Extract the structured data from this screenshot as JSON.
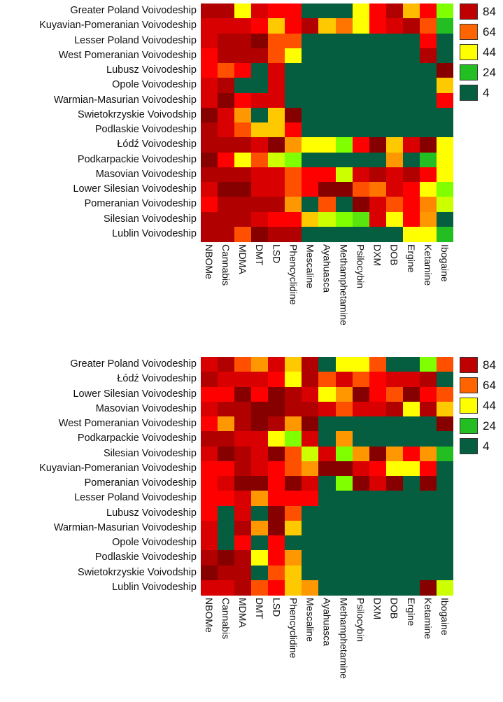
{
  "chart_data": [
    {
      "type": "heatmap",
      "title": "",
      "columns": [
        "NBOMe",
        "Cannabis",
        "MDMA",
        "DMT",
        "LSD",
        "Phencyclidine",
        "Mescaline",
        "Ayahuasca",
        "Methamphetamine",
        "Psilocybin",
        "DXM",
        "DOB",
        "Ergine",
        "Ketamine",
        "Ibogaine"
      ],
      "rows": [
        "Greater Poland Voivodeship",
        "Kuyavian-Pomeranian Voivodeship",
        "Lesser Poland Voivodeship",
        "West Pomeranian Voivodeship",
        "Lubusz Voivodeship",
        "Opole Voivodeship",
        "Warmian-Masurian Voivodeship",
        "Swietokrzyskie Voivodship",
        "Podlaskie Voivodeship",
        "Łódź Voivodeship",
        "Podkarpackie Voivodeship",
        "Masovian Voivodeship",
        "Lower Silesian Voivodeship",
        "Pomeranian Voivodeship",
        "Silesian Voivodeship",
        "Lublin Voivodeship"
      ],
      "values": [
        [
          86,
          86,
          44,
          80,
          74,
          74,
          4,
          4,
          4,
          44,
          74,
          86,
          54,
          74,
          34
        ],
        [
          80,
          80,
          80,
          74,
          52,
          74,
          86,
          52,
          62,
          44,
          74,
          80,
          86,
          66,
          24
        ],
        [
          80,
          86,
          86,
          92,
          66,
          66,
          4,
          4,
          4,
          4,
          4,
          4,
          4,
          74,
          4
        ],
        [
          74,
          86,
          86,
          86,
          66,
          44,
          4,
          4,
          4,
          4,
          4,
          4,
          4,
          86,
          4
        ],
        [
          74,
          66,
          74,
          4,
          80,
          4,
          4,
          4,
          4,
          4,
          4,
          4,
          4,
          4,
          92
        ],
        [
          80,
          86,
          4,
          4,
          80,
          4,
          4,
          4,
          4,
          4,
          4,
          4,
          4,
          4,
          52
        ],
        [
          80,
          92,
          74,
          80,
          80,
          4,
          4,
          4,
          4,
          4,
          4,
          4,
          4,
          4,
          74
        ],
        [
          92,
          80,
          58,
          4,
          52,
          92,
          4,
          4,
          4,
          4,
          4,
          4,
          4,
          4,
          4
        ],
        [
          86,
          80,
          66,
          52,
          52,
          74,
          4,
          4,
          4,
          4,
          4,
          4,
          4,
          4,
          4
        ],
        [
          86,
          86,
          86,
          80,
          92,
          58,
          44,
          44,
          34,
          74,
          92,
          52,
          80,
          92,
          44
        ],
        [
          92,
          74,
          44,
          66,
          40,
          34,
          4,
          4,
          4,
          4,
          4,
          58,
          4,
          24,
          44
        ],
        [
          86,
          86,
          86,
          80,
          80,
          66,
          74,
          74,
          40,
          80,
          86,
          80,
          86,
          74,
          44
        ],
        [
          80,
          92,
          92,
          80,
          80,
          66,
          74,
          92,
          92,
          66,
          62,
          80,
          74,
          44,
          34
        ],
        [
          74,
          86,
          86,
          86,
          86,
          58,
          4,
          66,
          4,
          92,
          80,
          66,
          74,
          60,
          40
        ],
        [
          86,
          86,
          86,
          80,
          74,
          74,
          52,
          40,
          34,
          30,
          80,
          44,
          74,
          58,
          4
        ],
        [
          86,
          86,
          66,
          92,
          86,
          86,
          4,
          4,
          4,
          4,
          4,
          4,
          44,
          44,
          24
        ]
      ],
      "legend": [
        "84",
        "64",
        "44",
        "24",
        "4"
      ],
      "legend_values": [
        84,
        64,
        44,
        24,
        4
      ],
      "legend_placement": "top-right"
    },
    {
      "type": "heatmap",
      "title": "",
      "columns": [
        "NBOMe",
        "Cannabis",
        "MDMA",
        "DMT",
        "LSD",
        "Phencyclidine",
        "Mescaline",
        "Ayahuasca",
        "Methamphetamine",
        "Psilocybin",
        "DXM",
        "DOB",
        "Ergine",
        "Ketamine",
        "Ibogaine"
      ],
      "rows": [
        "Greater Poland Voivodeship",
        "Łódź Voivodeship",
        "Lower Silesian Voivodeship",
        "Masovian Voivodeship",
        "West Pomeranian Voivodeship",
        "Podkarpackie Voivodeship",
        "Silesian Voivodeship",
        "Kuyavian-Pomeranian Voivodeship",
        "Pomeranian Voivodeship",
        "Lesser Poland Voivodeship",
        "Lubusz Voivodeship",
        "Warmian-Masurian Voivodeship",
        "Opole Voivodeship",
        "Podlaskie Voivodeship",
        "Swietokrzyskie Voivodship",
        "Lublin Voivodeship"
      ],
      "values": [
        [
          80,
          86,
          66,
          58,
          80,
          52,
          86,
          4,
          44,
          44,
          66,
          4,
          4,
          34,
          66
        ],
        [
          86,
          80,
          80,
          80,
          74,
          44,
          86,
          66,
          80,
          66,
          74,
          80,
          80,
          86,
          4
        ],
        [
          74,
          74,
          92,
          74,
          92,
          86,
          80,
          44,
          58,
          92,
          74,
          66,
          92,
          74,
          66
        ],
        [
          80,
          86,
          86,
          92,
          92,
          86,
          86,
          80,
          66,
          80,
          80,
          86,
          44,
          86,
          52
        ],
        [
          74,
          58,
          86,
          92,
          86,
          58,
          92,
          4,
          4,
          4,
          4,
          4,
          4,
          4,
          92
        ],
        [
          86,
          86,
          80,
          80,
          44,
          34,
          80,
          4,
          58,
          4,
          4,
          4,
          4,
          4,
          4
        ],
        [
          80,
          92,
          86,
          80,
          92,
          66,
          40,
          80,
          34,
          58,
          92,
          58,
          74,
          58,
          24
        ],
        [
          74,
          74,
          86,
          80,
          74,
          66,
          58,
          92,
          92,
          80,
          74,
          44,
          44,
          74,
          4
        ],
        [
          74,
          80,
          92,
          92,
          74,
          92,
          80,
          4,
          34,
          92,
          80,
          92,
          4,
          92,
          4
        ],
        [
          74,
          74,
          80,
          58,
          74,
          74,
          74,
          4,
          4,
          4,
          4,
          4,
          4,
          4,
          4
        ],
        [
          74,
          4,
          80,
          4,
          92,
          66,
          4,
          4,
          4,
          4,
          4,
          4,
          4,
          4,
          4
        ],
        [
          80,
          4,
          86,
          58,
          92,
          52,
          4,
          4,
          4,
          4,
          4,
          4,
          4,
          4,
          4
        ],
        [
          80,
          4,
          74,
          4,
          74,
          4,
          4,
          4,
          4,
          4,
          4,
          4,
          4,
          4,
          4
        ],
        [
          86,
          92,
          86,
          44,
          74,
          58,
          4,
          4,
          4,
          4,
          4,
          4,
          4,
          4,
          4
        ],
        [
          92,
          86,
          86,
          4,
          66,
          52,
          4,
          4,
          4,
          4,
          4,
          4,
          4,
          4,
          4
        ],
        [
          80,
          80,
          86,
          66,
          74,
          52,
          58,
          4,
          4,
          4,
          4,
          4,
          4,
          92,
          40
        ]
      ],
      "legend": [
        "84",
        "64",
        "44",
        "24",
        "4"
      ],
      "legend_values": [
        84,
        64,
        44,
        24,
        4
      ],
      "legend_placement": "top-right"
    }
  ]
}
